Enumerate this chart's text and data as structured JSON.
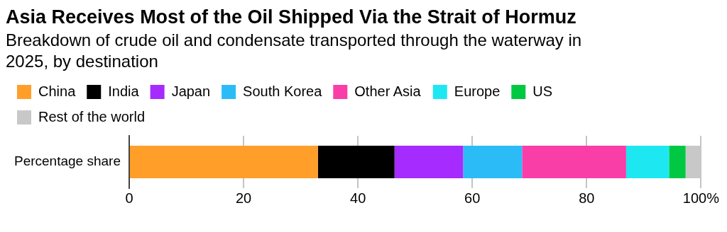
{
  "chart_data": {
    "type": "bar",
    "title": "Asia Receives Most of the Oil Shipped Via the Strait of Hormuz",
    "subtitle": "Breakdown of crude oil and condensate transported through the waterway in 2025, by destination",
    "orientation": "horizontal",
    "stacked": true,
    "categories": [
      "Percentage share"
    ],
    "series": [
      {
        "name": "China",
        "color": "#ff9f2a",
        "values": [
          33.0
        ]
      },
      {
        "name": "India",
        "color": "#000000",
        "values": [
          13.4
        ]
      },
      {
        "name": "Japan",
        "color": "#a62bff",
        "values": [
          12.0
        ]
      },
      {
        "name": "South Korea",
        "color": "#2bbcf7",
        "values": [
          10.3
        ]
      },
      {
        "name": "Other Asia",
        "color": "#f93ea8",
        "values": [
          18.2
        ]
      },
      {
        "name": "Europe",
        "color": "#1de8f2",
        "values": [
          7.5
        ]
      },
      {
        "name": "US",
        "color": "#00c842",
        "values": [
          2.9
        ]
      },
      {
        "name": "Rest of the world",
        "color": "#c8c8c8",
        "values": [
          2.7
        ]
      }
    ],
    "xlim": [
      0,
      100
    ],
    "xticks": [
      0,
      20,
      40,
      60,
      80,
      {
        "value": 100,
        "label": "100%"
      }
    ],
    "grid": "x",
    "legend": "top left"
  }
}
